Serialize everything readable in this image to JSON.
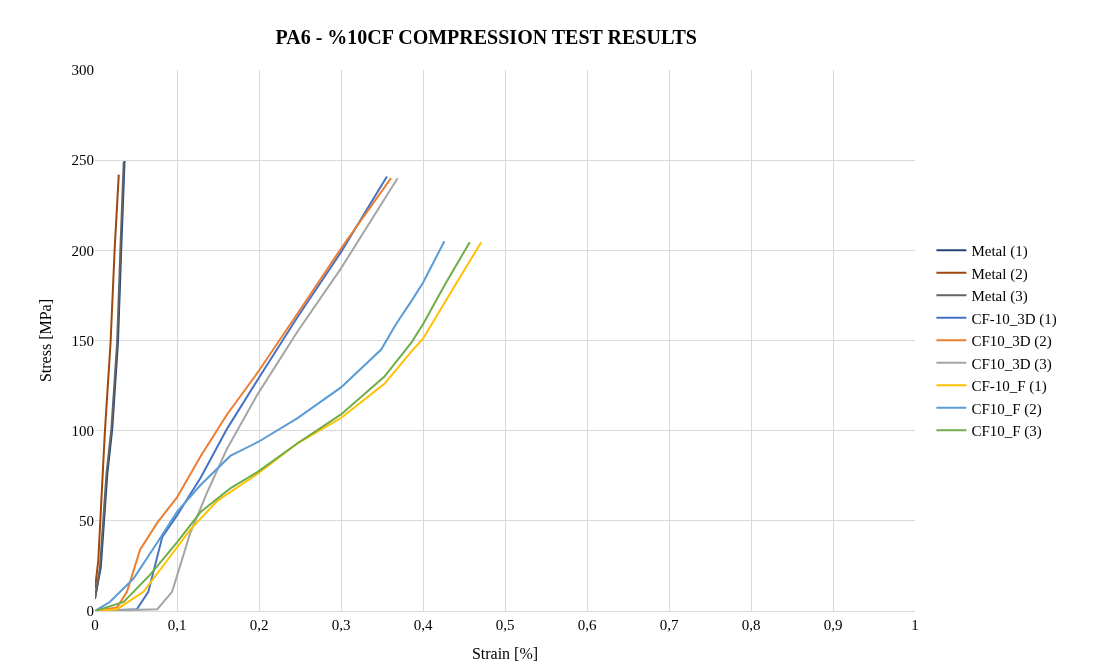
{
  "chart_data": {
    "type": "line",
    "title": "PA6 - %10CF COMPRESSION TEST RESULTS",
    "xlabel": "Strain [%]",
    "ylabel": "Stress [MPa]",
    "xlim": [
      0,
      1
    ],
    "ylim": [
      0,
      300
    ],
    "xticks": [
      0,
      {
        "value": 0.1,
        "label": "0,1"
      },
      {
        "value": 0.2,
        "label": "0,2"
      },
      {
        "value": 0.3,
        "label": "0,3"
      },
      {
        "value": 0.4,
        "label": "0,4"
      },
      {
        "value": 0.5,
        "label": "0,5"
      },
      {
        "value": 0.6,
        "label": "0,6"
      },
      {
        "value": 0.7,
        "label": "0,7"
      },
      {
        "value": 0.8,
        "label": "0,8"
      },
      {
        "value": 0.9,
        "label": "0,9"
      },
      1
    ],
    "yticks": [
      0,
      50,
      100,
      150,
      200,
      250,
      300
    ],
    "grid": true,
    "legend": "right",
    "marker": "none",
    "line_style": "solid",
    "series": [
      {
        "name": "Metal (1)",
        "color": "#264478",
        "x": [
          0,
          0.007,
          0.015,
          0.021,
          0.028,
          0.032,
          0.036
        ],
        "values": [
          7,
          24,
          76,
          101,
          149,
          201,
          249.5
        ]
      },
      {
        "name": "Metal (2)",
        "color": "#9e480e",
        "x": [
          0,
          0.004,
          0.012,
          0.019,
          0.024,
          0.029
        ],
        "values": [
          12.5,
          28,
          99,
          149,
          201,
          242
        ]
      },
      {
        "name": "Metal (3)",
        "color": "#636363",
        "x": [
          0,
          0.006,
          0.014,
          0.02,
          0.027,
          0.031,
          0.035
        ],
        "values": [
          6.7,
          24,
          76,
          101,
          149,
          201,
          249
        ]
      },
      {
        "name": "CF-10_3D (1)",
        "color": "#4472c4",
        "x": [
          0,
          0.051,
          0.065,
          0.082,
          0.1,
          0.129,
          0.161,
          0.198,
          0.247,
          0.3,
          0.356
        ],
        "values": [
          0,
          1,
          10.6,
          41,
          53,
          74,
          101,
          128,
          163,
          199,
          241
        ]
      },
      {
        "name": "CF10_3D (2)",
        "color": "#ed7d31",
        "x": [
          0,
          0.027,
          0.039,
          0.055,
          0.076,
          0.1,
          0.129,
          0.161,
          0.198,
          0.247,
          0.3,
          0.361
        ],
        "values": [
          0,
          2,
          10.6,
          34,
          49,
          63,
          86,
          109,
          132,
          165,
          201,
          240
        ]
      },
      {
        "name": "CF10_3D (3)",
        "color": "#a5a5a5",
        "x": [
          0,
          0.076,
          0.094,
          0.116,
          0.137,
          0.161,
          0.198,
          0.247,
          0.3,
          0.369
        ],
        "values": [
          0,
          1,
          10.6,
          43,
          66,
          90,
          120,
          155,
          190,
          240
        ]
      },
      {
        "name": "CF-10_F (1)",
        "color": "#ffc000",
        "x": [
          0,
          0.027,
          0.059,
          0.088,
          0.116,
          0.149,
          0.198,
          0.247,
          0.3,
          0.353,
          0.386,
          0.4,
          0.441,
          0.471
        ],
        "values": [
          0,
          1,
          10.6,
          28,
          45,
          61,
          76,
          93,
          107,
          126,
          144,
          151,
          182,
          204.5
        ]
      },
      {
        "name": "CF10_F (2)",
        "color": "#5b9bd5",
        "x": [
          0,
          0.018,
          0.047,
          0.076,
          0.1,
          0.129,
          0.165,
          0.2,
          0.247,
          0.3,
          0.349,
          0.367,
          0.386,
          0.4,
          0.426
        ],
        "values": [
          0,
          5,
          18,
          38,
          55,
          70,
          86,
          94,
          107,
          124,
          145,
          159,
          172,
          182,
          205
        ]
      },
      {
        "name": "CF10_F (3)",
        "color": "#70ad47",
        "x": [
          0,
          0.035,
          0.067,
          0.1,
          0.129,
          0.165,
          0.198,
          0.247,
          0.3,
          0.353,
          0.386,
          0.4,
          0.428,
          0.457
        ],
        "values": [
          0,
          5,
          20,
          38,
          55,
          68,
          77,
          93,
          109,
          130,
          149,
          159,
          182,
          204.5
        ]
      }
    ]
  }
}
